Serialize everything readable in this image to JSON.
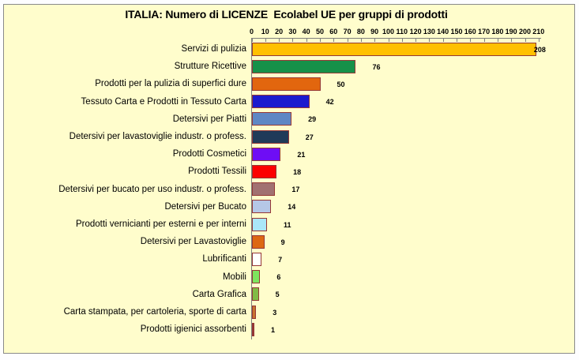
{
  "title": "ITALIA: Numero di LICENZE  Ecolabel UE per gruppi di prodotti",
  "chart_data": {
    "type": "bar",
    "orientation": "horizontal",
    "title": "ITALIA: Numero di LICENZE  Ecolabel UE per gruppi di prodotti",
    "categories": [
      "Servizi di pulizia",
      "Strutture Ricettive",
      "Prodotti per la pulizia di superfici dure",
      "Tessuto Carta e Prodotti in Tessuto Carta",
      "Detersivi per Piatti",
      "Detersivi per lavastoviglie industr. o profess.",
      "Prodotti Cosmetici",
      "Prodotti Tessili",
      "Detersivi per bucato per uso industr. o profess.",
      "Detersivi per Bucato",
      "Prodotti vernicianti per esterni e per interni",
      "Detersivi per Lavastoviglie",
      "Lubrificanti",
      "Mobili",
      "Carta Grafica",
      "Carta stampata, per cartoleria, sporte di carta",
      "Prodotti igienici assorbenti"
    ],
    "values": [
      208,
      76,
      50,
      42,
      29,
      27,
      21,
      18,
      17,
      14,
      11,
      9,
      7,
      6,
      5,
      3,
      1
    ],
    "bar_colors": [
      "#FFC000",
      "#169149",
      "#E2660E",
      "#1B1BCE",
      "#5E87C4",
      "#203A59",
      "#6E0DF5",
      "#FC0000",
      "#A17171",
      "#B5C7E6",
      "#AAE6F8",
      "#DD6813",
      "#FFFFFF",
      "#7EE55E",
      "#81BB45",
      "#C8732F",
      "#953735"
    ],
    "bar_border_color": "#953735",
    "value_labels_visible": true,
    "axis": {
      "position": "top",
      "min": 0,
      "max": 210,
      "tick_interval": 10,
      "tick_values": [
        0,
        10,
        20,
        30,
        40,
        50,
        60,
        70,
        80,
        90,
        100,
        110,
        120,
        130,
        140,
        150,
        160,
        170,
        180,
        190,
        200,
        210
      ]
    },
    "grid": false,
    "legend": "none",
    "colors": {
      "plot_background": "#FFFDCC",
      "frame_border": "#8A8A8A",
      "axis_line": "#7F7F7F",
      "text": "#000000"
    }
  }
}
